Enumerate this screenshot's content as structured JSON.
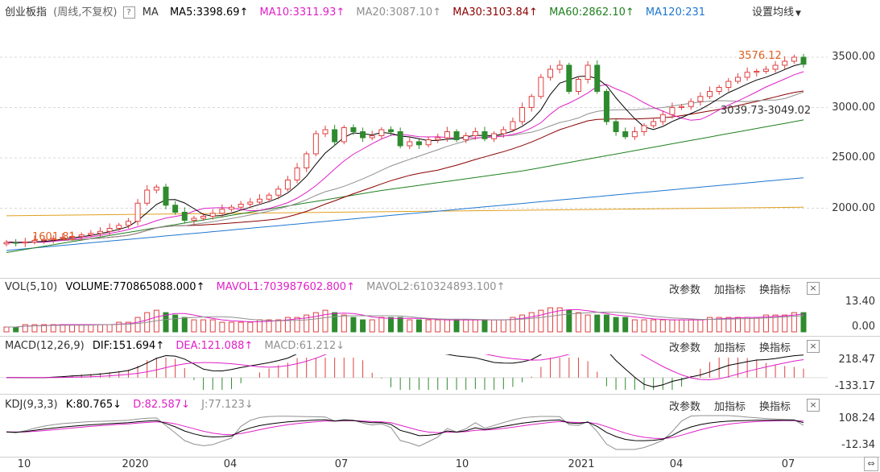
{
  "main": {
    "index_name": "创业板指",
    "index_period": "(周线,不复权)",
    "help_mark": "?",
    "ma_label": "MA",
    "ma5": "MA5:3398.69",
    "ma10": "MA10:3311.93",
    "ma20": "MA20:3087.10",
    "ma30": "MA30:3103.84",
    "ma60": "MA60:2862.10",
    "ma120": "MA120:231",
    "settings": "设置均线",
    "up_arrow": "↑",
    "y_ticks": [
      "3500.00",
      "3000.00",
      "2500.00",
      "2000.00"
    ],
    "high_label": "3576.12",
    "low_label": "1601.81",
    "range_label": "3039.73-3049.02",
    "colors": {
      "up": "#e04040",
      "down": "#2e8b2e",
      "ma5": "#000000",
      "ma10": "#e020c8",
      "ma20": "#909090",
      "ma30": "#8b0000",
      "ma60": "#208020",
      "ma120": "#1f77d0",
      "ma250": "#e0a020"
    }
  },
  "vol": {
    "label": "VOL(5,10)",
    "volume": "VOLUME:770865088.000",
    "mavol1": "MAVOL1:703987602.800",
    "mavol2": "MAVOL2:610324893.100",
    "up_arrow": "↑",
    "y_ticks": [
      "13.40",
      "0.00"
    ]
  },
  "macd": {
    "label": "MACD(12,26,9)",
    "dif": "DIF:151.694",
    "dea": "DEA:121.088",
    "macd": "MACD:61.212",
    "up_arrow": "↑",
    "down_arrow": "↓",
    "y_ticks": [
      "218.47",
      "-133.17"
    ]
  },
  "kdj": {
    "label": "KDJ(9,3,3)",
    "k": "K:80.765",
    "d": "D:82.587",
    "j": "J:77.123",
    "down_arrow": "↓",
    "y_ticks": [
      "108.24",
      "-12.34"
    ]
  },
  "buttons": {
    "params": "改参数",
    "add": "加指标",
    "switch": "换指标",
    "close": "×"
  },
  "x_axis": {
    "ticks": [
      "10",
      "2020",
      "04",
      "07",
      "10",
      "2021",
      "04",
      "07"
    ],
    "scroll_glyph": "⇔"
  },
  "chart_data": {
    "type": "candlestick",
    "title": "创业板指 (周线,不复权)",
    "x_ticks": [
      "10",
      "2020",
      "04",
      "07",
      "10",
      "2021",
      "04",
      "07"
    ],
    "y_ticks": [
      2000,
      2500,
      3000,
      3500
    ],
    "ylim": [
      1480,
      3700
    ],
    "annotations": {
      "high": 3576.12,
      "low": 1601.81,
      "range": "3039.73-3049.02"
    },
    "closes": [
      1660,
      1655,
      1665,
      1680,
      1690,
      1700,
      1710,
      1720,
      1735,
      1750,
      1770,
      1800,
      1830,
      1870,
      2050,
      2180,
      2210,
      2030,
      1960,
      1880,
      1900,
      1920,
      1950,
      1990,
      2010,
      2040,
      2060,
      2090,
      2130,
      2190,
      2280,
      2400,
      2540,
      2740,
      2780,
      2660,
      2800,
      2760,
      2700,
      2720,
      2780,
      2760,
      2620,
      2660,
      2630,
      2680,
      2700,
      2760,
      2680,
      2720,
      2760,
      2690,
      2740,
      2780,
      2860,
      3000,
      3110,
      3300,
      3380,
      3420,
      3160,
      3280,
      3420,
      3160,
      2860,
      2760,
      2710,
      2760,
      2820,
      2860,
      2930,
      3000,
      3010,
      3060,
      3110,
      3160,
      3200,
      3260,
      3300,
      3350,
      3360,
      3380,
      3420,
      3460,
      3500,
      3430
    ],
    "ma_lines": {
      "MA5": [
        1661,
        1659,
        1660,
        1665,
        1670,
        1680,
        1692,
        1705,
        1717,
        1730,
        1747,
        1767,
        1790,
        1818,
        1878,
        1956,
        2038,
        2084,
        2086,
        2052,
        1996,
        1938,
        1922,
        1928,
        1952,
        1982,
        2010,
        2038,
        2066,
        2102,
        2152,
        2228,
        2318,
        2438,
        2548,
        2624,
        2704,
        2748,
        2740,
        2728,
        2752,
        2744,
        2716,
        2708,
        2690,
        2670,
        2674,
        2686,
        2690,
        2708,
        2724,
        2722,
        2720,
        2738,
        2766,
        2814,
        2876,
        2978,
        3130,
        3242,
        3274,
        3308,
        3312,
        3288,
        3218,
        3096,
        2990,
        2890,
        2808,
        2782,
        2812,
        2862,
        2900,
        2942,
        2982,
        3034,
        3092,
        3148,
        3190,
        3234,
        3274,
        3302,
        3338,
        3378,
        3416,
        3438
      ],
      "MA10": [
        1665,
        1664,
        1663,
        1662,
        1663,
        1671,
        1682,
        1692,
        1704,
        1716,
        1730,
        1749,
        1767,
        1788,
        1816,
        1843,
        1877,
        1902,
        1918,
        1935,
        1971,
        1997,
        2003,
        2006,
        2002,
        1988,
        1975,
        1979,
        1997,
        2024,
        2055,
        2100,
        2158,
        2224,
        2304,
        2389,
        2469,
        2536,
        2588,
        2641,
        2688,
        2724,
        2732,
        2724,
        2710,
        2708,
        2710,
        2702,
        2697,
        2698,
        2698,
        2702,
        2707,
        2716,
        2733,
        2757,
        2798,
        2849,
        2934,
        3005,
        3044,
        3091,
        3145,
        3209,
        3230,
        3185,
        3149,
        3101,
        3048,
        3001,
        2964,
        2926,
        2895,
        2874,
        2882,
        2923,
        2977,
        3024,
        3066,
        3110,
        3156,
        3204,
        3244,
        3284,
        3326,
        3356
      ]
    },
    "volume_relative": [
      2,
      2,
      3,
      3,
      3,
      3,
      3,
      3,
      3,
      3,
      3,
      3,
      4,
      4,
      6,
      8,
      9,
      8,
      7,
      6,
      5,
      5,
      5,
      4,
      4,
      4,
      4,
      5,
      5,
      5,
      6,
      6,
      7,
      8,
      9,
      8,
      7,
      6,
      5,
      5,
      6,
      6,
      6,
      5,
      5,
      5,
      5,
      5,
      5,
      5,
      5,
      5,
      5,
      5,
      6,
      7,
      8,
      9,
      10,
      10,
      9,
      8,
      7,
      7,
      7,
      6,
      6,
      5,
      5,
      5,
      5,
      5,
      5,
      5,
      5,
      6,
      6,
      6,
      6,
      6,
      6,
      7,
      7,
      7,
      8,
      8
    ],
    "macd_range": [
      -133.17,
      218.47
    ],
    "kdj_range": [
      -12.34,
      108.24
    ]
  }
}
